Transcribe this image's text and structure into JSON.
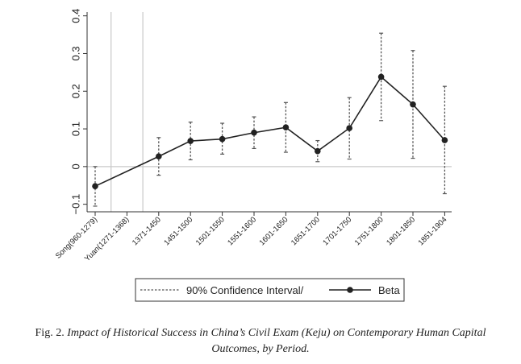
{
  "chart_data": {
    "type": "line",
    "categories": [
      "Song(960-1279)",
      "Yuan(1271-1368)",
      "1371-1450",
      "1451-1500",
      "1501-1550",
      "1551-1600",
      "1601-1650",
      "1651-1700",
      "1701-1750",
      "1751-1800",
      "1801-1850",
      "1851-1904"
    ],
    "series": [
      {
        "name": "Beta",
        "values": [
          -0.052,
          null,
          0.027,
          0.068,
          0.073,
          0.09,
          0.104,
          0.041,
          0.102,
          0.238,
          0.165,
          0.07
        ]
      },
      {
        "name": "90% Confidence Interval/",
        "lower": [
          -0.105,
          null,
          -0.023,
          0.018,
          0.033,
          0.048,
          0.038,
          0.013,
          0.02,
          0.122,
          0.022,
          -0.072
        ],
        "upper": [
          0.0,
          null,
          0.077,
          0.118,
          0.115,
          0.132,
          0.17,
          0.069,
          0.183,
          0.354,
          0.308,
          0.213
        ]
      }
    ],
    "yticks": [
      "−0.1",
      "0",
      "0.1",
      "0.2",
      "0.3",
      "0.4"
    ],
    "ylim": [
      -0.12,
      0.41
    ],
    "reference_line": 0,
    "vertical_lines_after": [
      "Song(960-1279)",
      "Yuan(1271-1368)"
    ],
    "legend": {
      "position": "bottom",
      "entries": [
        "90% Confidence Interval/",
        "Beta"
      ]
    },
    "colors": {
      "line": "#222222",
      "ci": "#555555",
      "gridline": "#c8c8c8"
    }
  },
  "caption": {
    "prefix": "Fig. 2.",
    "line1": "Impact of Historical Success in China’s Civil Exam (Keju) on Contemporary Human Capital",
    "line2": "Outcomes, by Period."
  }
}
